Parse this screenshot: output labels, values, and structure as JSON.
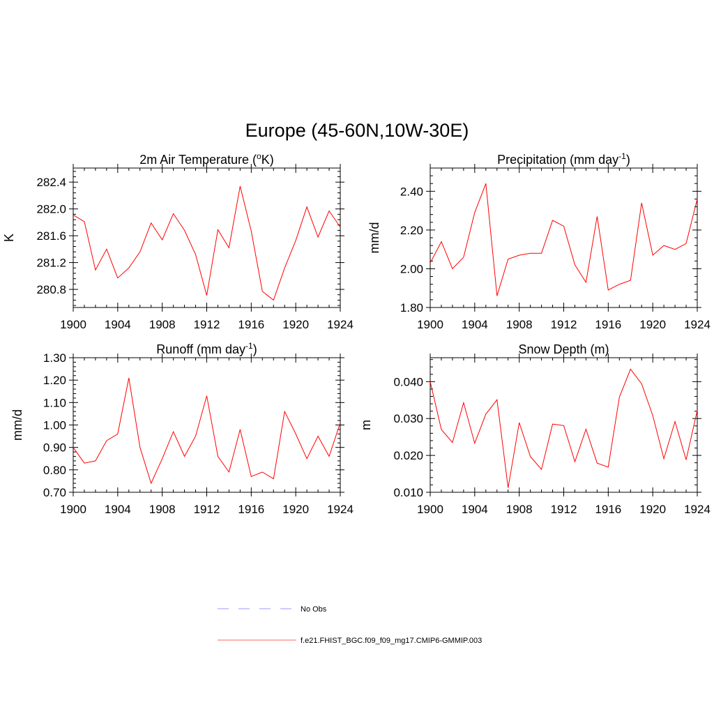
{
  "title": "Europe (45-60N,10W-30E)",
  "legend": {
    "entries": [
      {
        "label": "No Obs",
        "color": "#9999ff",
        "style": "dashed"
      },
      {
        "label": "f.e21.FHIST_BGC.f09_f09_mg17.CMIP6-GMMIP.003",
        "color": "#ff6666",
        "style": "solid"
      }
    ]
  },
  "chart_data": [
    {
      "type": "line",
      "title": "2m Air Temperature (",
      "title_sup": "o",
      "title_tail": "K)",
      "xlabel": "",
      "ylabel": "K",
      "x": [
        1900,
        1901,
        1902,
        1903,
        1904,
        1905,
        1906,
        1907,
        1908,
        1909,
        1910,
        1911,
        1912,
        1913,
        1914,
        1915,
        1916,
        1917,
        1918,
        1919,
        1920,
        1921,
        1922,
        1923,
        1924
      ],
      "xlim": [
        1900,
        1924
      ],
      "xticks": [
        "1900",
        "1904",
        "1908",
        "1912",
        "1916",
        "1920",
        "1924"
      ],
      "ylim": [
        280.53,
        282.61
      ],
      "yticks": [
        "280.8",
        "281.2",
        "281.6",
        "282.0",
        "282.4"
      ],
      "series": [
        {
          "name": "f.e21.FHIST_BGC.f09_f09_mg17.CMIP6-GMMIP.003",
          "color": "#ff0000",
          "values": [
            281.91,
            281.81,
            281.09,
            281.4,
            280.97,
            281.12,
            281.36,
            281.79,
            281.54,
            281.93,
            281.68,
            281.32,
            280.71,
            281.69,
            281.42,
            282.34,
            281.67,
            280.77,
            280.64,
            281.12,
            281.53,
            282.03,
            281.58,
            281.97,
            281.73
          ]
        }
      ]
    },
    {
      "type": "line",
      "title": "Precipitation (mm day",
      "title_sup": "-1",
      "title_tail": ")",
      "xlabel": "",
      "ylabel": "mm/d",
      "x": [
        1900,
        1901,
        1902,
        1903,
        1904,
        1905,
        1906,
        1907,
        1908,
        1909,
        1910,
        1911,
        1912,
        1913,
        1914,
        1915,
        1916,
        1917,
        1918,
        1919,
        1920,
        1921,
        1922,
        1923,
        1924
      ],
      "xlim": [
        1900,
        1924
      ],
      "xticks": [
        "1900",
        "1904",
        "1908",
        "1912",
        "1916",
        "1920",
        "1924"
      ],
      "ylim": [
        1.8,
        2.52
      ],
      "yticks": [
        "1.80",
        "2.00",
        "2.20",
        "2.40"
      ],
      "series": [
        {
          "name": "f.e21.FHIST_BGC.f09_f09_mg17.CMIP6-GMMIP.003",
          "color": "#ff0000",
          "values": [
            2.03,
            2.14,
            2.0,
            2.06,
            2.29,
            2.44,
            1.86,
            2.05,
            2.07,
            2.08,
            2.08,
            2.25,
            2.22,
            2.02,
            1.93,
            2.27,
            1.89,
            1.92,
            1.94,
            2.34,
            2.07,
            2.12,
            2.1,
            2.13,
            2.36
          ]
        }
      ]
    },
    {
      "type": "line",
      "title": "Runoff (mm day",
      "title_sup": "-1",
      "title_tail": ")",
      "xlabel": "",
      "ylabel": "mm/d",
      "x": [
        1900,
        1901,
        1902,
        1903,
        1904,
        1905,
        1906,
        1907,
        1908,
        1909,
        1910,
        1911,
        1912,
        1913,
        1914,
        1915,
        1916,
        1917,
        1918,
        1919,
        1920,
        1921,
        1922,
        1923,
        1924
      ],
      "xlim": [
        1900,
        1924
      ],
      "xticks": [
        "1900",
        "1904",
        "1908",
        "1912",
        "1916",
        "1920",
        "1924"
      ],
      "ylim": [
        0.7,
        1.3
      ],
      "yticks": [
        "0.70",
        "0.80",
        "0.90",
        "1.00",
        "1.10",
        "1.20",
        "1.30"
      ],
      "series": [
        {
          "name": "f.e21.FHIST_BGC.f09_f09_mg17.CMIP6-GMMIP.003",
          "color": "#ff0000",
          "values": [
            0.9,
            0.83,
            0.84,
            0.93,
            0.96,
            1.21,
            0.9,
            0.74,
            0.85,
            0.97,
            0.86,
            0.95,
            1.13,
            0.86,
            0.79,
            0.98,
            0.77,
            0.79,
            0.76,
            1.06,
            0.96,
            0.85,
            0.95,
            0.86,
            1.01
          ]
        }
      ]
    },
    {
      "type": "line",
      "title": "Snow Depth (m)",
      "title_sup": "",
      "title_tail": "",
      "xlabel": "",
      "ylabel": "m",
      "x": [
        1900,
        1901,
        1902,
        1903,
        1904,
        1905,
        1906,
        1907,
        1908,
        1909,
        1910,
        1911,
        1912,
        1913,
        1914,
        1915,
        1916,
        1917,
        1918,
        1919,
        1920,
        1921,
        1922,
        1923,
        1924
      ],
      "xlim": [
        1900,
        1924
      ],
      "xticks": [
        "1900",
        "1904",
        "1908",
        "1912",
        "1916",
        "1920",
        "1924"
      ],
      "ylim": [
        0.01,
        0.0465
      ],
      "yticks": [
        "0.010",
        "0.020",
        "0.030",
        "0.040"
      ],
      "series": [
        {
          "name": "f.e21.FHIST_BGC.f09_f09_mg17.CMIP6-GMMIP.003",
          "color": "#ff0000",
          "values": [
            0.04,
            0.027,
            0.0235,
            0.0343,
            0.0233,
            0.0312,
            0.0351,
            0.0112,
            0.0289,
            0.0197,
            0.0162,
            0.0285,
            0.0281,
            0.0183,
            0.0271,
            0.0179,
            0.0168,
            0.0358,
            0.0434,
            0.0394,
            0.0308,
            0.0191,
            0.0292,
            0.0188,
            0.0322
          ]
        }
      ]
    }
  ]
}
